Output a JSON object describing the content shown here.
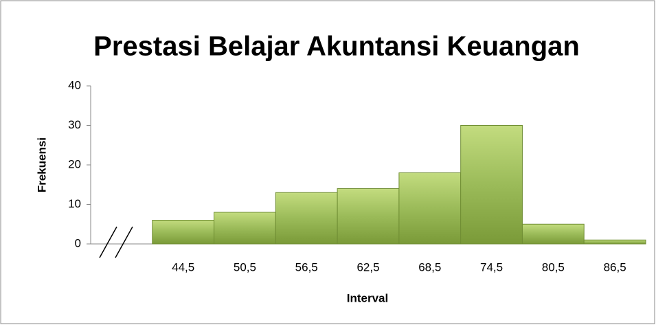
{
  "chart_data": {
    "type": "bar",
    "title": "Prestasi Belajar Akuntansi Keuangan",
    "xlabel": "Interval",
    "ylabel": "Frekuensi",
    "categories": [
      null,
      "44,5",
      "50,5",
      "56,5",
      "62,5",
      "68,5",
      "74,5",
      "80,5",
      "86,5"
    ],
    "values": [
      null,
      6,
      8,
      13,
      14,
      18,
      30,
      5,
      1
    ],
    "color": "#9bbb59",
    "ylim": [
      0,
      40
    ],
    "yticks": [
      0,
      10,
      20,
      30,
      40
    ],
    "grid": false
  }
}
